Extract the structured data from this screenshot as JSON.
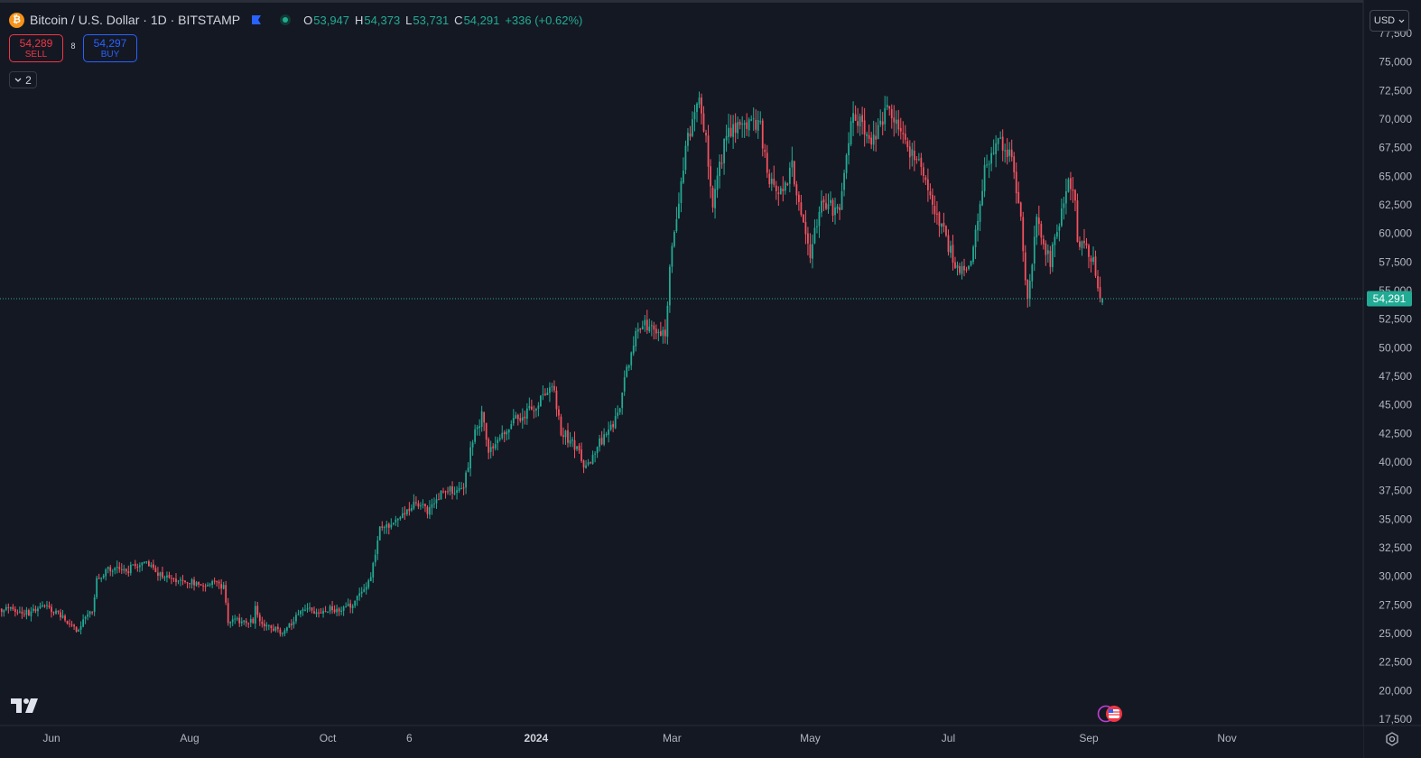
{
  "header": {
    "symbol_title": "Bitcoin / U.S. Dollar · 1D · BITSTAMP",
    "ohlc": {
      "o_label": "O",
      "o_value": "53,947",
      "h_label": "H",
      "h_value": "54,373",
      "l_label": "L",
      "l_value": "53,731",
      "c_label": "C",
      "c_value": "54,291",
      "change": "+336 (+0.62%)"
    }
  },
  "trade": {
    "sell_price": "54,289",
    "sell_label": "SELL",
    "spread": "8",
    "buy_price": "54,297",
    "buy_label": "BUY"
  },
  "indicators": {
    "count": "2"
  },
  "currency": {
    "label": "USD"
  },
  "colors": {
    "background": "#141823",
    "up": "#22ab94",
    "down": "#f7525f",
    "sell": "#f23645",
    "buy": "#2962ff",
    "last_price": "#22ab94",
    "axis_text": "#b2b5be"
  },
  "icons": [
    "bitcoin-icon",
    "flag-icon",
    "market-status-icon",
    "chevron-down-icon",
    "tradingview-logo-icon",
    "settings-icon",
    "economic-events-icon"
  ],
  "chart_data": {
    "type": "candlestick",
    "interval": "1D",
    "ylim": [
      17500,
      77500
    ],
    "y_ticks": [
      "17,500",
      "20,000",
      "22,500",
      "25,000",
      "27,500",
      "30,000",
      "32,500",
      "35,000",
      "37,500",
      "40,000",
      "42,500",
      "45,000",
      "47,500",
      "50,000",
      "52,500",
      "55,000",
      "57,500",
      "60,000",
      "62,500",
      "65,000",
      "67,500",
      "70,000",
      "72,500",
      "75,000",
      "77,500"
    ],
    "x_ticks": [
      {
        "label": "Jun",
        "date": "2023-06-01"
      },
      {
        "label": "Aug",
        "date": "2023-08-01"
      },
      {
        "label": "Oct",
        "date": "2023-10-01"
      },
      {
        "label": "6",
        "date": "2023-11-06"
      },
      {
        "label": "2024",
        "date": "2024-01-01"
      },
      {
        "label": "Mar",
        "date": "2024-03-01"
      },
      {
        "label": "May",
        "date": "2024-05-01"
      },
      {
        "label": "Jul",
        "date": "2024-07-01"
      },
      {
        "label": "Sep",
        "date": "2024-09-01"
      },
      {
        "label": "Nov",
        "date": "2024-11-01"
      }
    ],
    "last_price": 54291,
    "last_price_label": "54,291",
    "close_path": [
      {
        "date": "2023-05-08",
        "close": 27000
      },
      {
        "date": "2023-05-15",
        "close": 27100
      },
      {
        "date": "2023-05-22",
        "close": 26800
      },
      {
        "date": "2023-05-29",
        "close": 27300
      },
      {
        "date": "2023-06-05",
        "close": 26500
      },
      {
        "date": "2023-06-12",
        "close": 25300
      },
      {
        "date": "2023-06-19",
        "close": 26900
      },
      {
        "date": "2023-06-21",
        "close": 29800
      },
      {
        "date": "2023-06-26",
        "close": 30500
      },
      {
        "date": "2023-07-05",
        "close": 30600
      },
      {
        "date": "2023-07-13",
        "close": 31300
      },
      {
        "date": "2023-07-20",
        "close": 29900
      },
      {
        "date": "2023-08-01",
        "close": 29500
      },
      {
        "date": "2023-08-10",
        "close": 29400
      },
      {
        "date": "2023-08-16",
        "close": 29200
      },
      {
        "date": "2023-08-18",
        "close": 26100
      },
      {
        "date": "2023-08-29",
        "close": 26000
      },
      {
        "date": "2023-08-30",
        "close": 27700
      },
      {
        "date": "2023-09-01",
        "close": 25900
      },
      {
        "date": "2023-09-11",
        "close": 25100
      },
      {
        "date": "2023-09-20",
        "close": 27000
      },
      {
        "date": "2023-09-28",
        "close": 27000
      },
      {
        "date": "2023-10-10",
        "close": 27300
      },
      {
        "date": "2023-10-16",
        "close": 28500
      },
      {
        "date": "2023-10-20",
        "close": 29900
      },
      {
        "date": "2023-10-23",
        "close": 33100
      },
      {
        "date": "2023-10-24",
        "close": 34300
      },
      {
        "date": "2023-11-01",
        "close": 34900
      },
      {
        "date": "2023-11-09",
        "close": 36700
      },
      {
        "date": "2023-11-14",
        "close": 35500
      },
      {
        "date": "2023-11-20",
        "close": 37400
      },
      {
        "date": "2023-11-30",
        "close": 37700
      },
      {
        "date": "2023-12-04",
        "close": 41900
      },
      {
        "date": "2023-12-08",
        "close": 44000
      },
      {
        "date": "2023-12-11",
        "close": 41200
      },
      {
        "date": "2023-12-18",
        "close": 42300
      },
      {
        "date": "2023-12-22",
        "close": 43700
      },
      {
        "date": "2024-01-02",
        "close": 45000
      },
      {
        "date": "2024-01-08",
        "close": 46900
      },
      {
        "date": "2024-01-12",
        "close": 42800
      },
      {
        "date": "2024-01-18",
        "close": 41300
      },
      {
        "date": "2024-01-23",
        "close": 39600
      },
      {
        "date": "2024-02-01",
        "close": 42600
      },
      {
        "date": "2024-02-07",
        "close": 44300
      },
      {
        "date": "2024-02-09",
        "close": 47200
      },
      {
        "date": "2024-02-15",
        "close": 52000
      },
      {
        "date": "2024-02-27",
        "close": 51500
      },
      {
        "date": "2024-02-29",
        "close": 57000
      },
      {
        "date": "2024-03-04",
        "close": 63000
      },
      {
        "date": "2024-03-08",
        "close": 68300
      },
      {
        "date": "2024-03-13",
        "close": 71500
      },
      {
        "date": "2024-03-16",
        "close": 68000
      },
      {
        "date": "2024-03-19",
        "close": 62800
      },
      {
        "date": "2024-03-25",
        "close": 68500
      },
      {
        "date": "2024-04-01",
        "close": 69500
      },
      {
        "date": "2024-04-09",
        "close": 69200
      },
      {
        "date": "2024-04-13",
        "close": 64700
      },
      {
        "date": "2024-04-19",
        "close": 63200
      },
      {
        "date": "2024-04-23",
        "close": 65800
      },
      {
        "date": "2024-05-01",
        "close": 58300
      },
      {
        "date": "2024-05-06",
        "close": 63000
      },
      {
        "date": "2024-05-14",
        "close": 61500
      },
      {
        "date": "2024-05-20",
        "close": 70800
      },
      {
        "date": "2024-05-28",
        "close": 68000
      },
      {
        "date": "2024-06-05",
        "close": 71100
      },
      {
        "date": "2024-06-12",
        "close": 67800
      },
      {
        "date": "2024-06-20",
        "close": 65200
      },
      {
        "date": "2024-07-05",
        "close": 56600
      },
      {
        "date": "2024-07-11",
        "close": 57400
      },
      {
        "date": "2024-07-17",
        "close": 65500
      },
      {
        "date": "2024-07-22",
        "close": 68100
      },
      {
        "date": "2024-07-29",
        "close": 66800
      },
      {
        "date": "2024-08-02",
        "close": 61000
      },
      {
        "date": "2024-08-05",
        "close": 54000
      },
      {
        "date": "2024-08-09",
        "close": 61000
      },
      {
        "date": "2024-08-15",
        "close": 57600
      },
      {
        "date": "2024-08-23",
        "close": 64100
      },
      {
        "date": "2024-08-26",
        "close": 62800
      },
      {
        "date": "2024-08-27",
        "close": 59400
      },
      {
        "date": "2024-08-30",
        "close": 59000
      },
      {
        "date": "2024-09-03",
        "close": 57500
      },
      {
        "date": "2024-09-06",
        "close": 53900
      },
      {
        "date": "2024-09-07",
        "close": 54291
      }
    ]
  }
}
